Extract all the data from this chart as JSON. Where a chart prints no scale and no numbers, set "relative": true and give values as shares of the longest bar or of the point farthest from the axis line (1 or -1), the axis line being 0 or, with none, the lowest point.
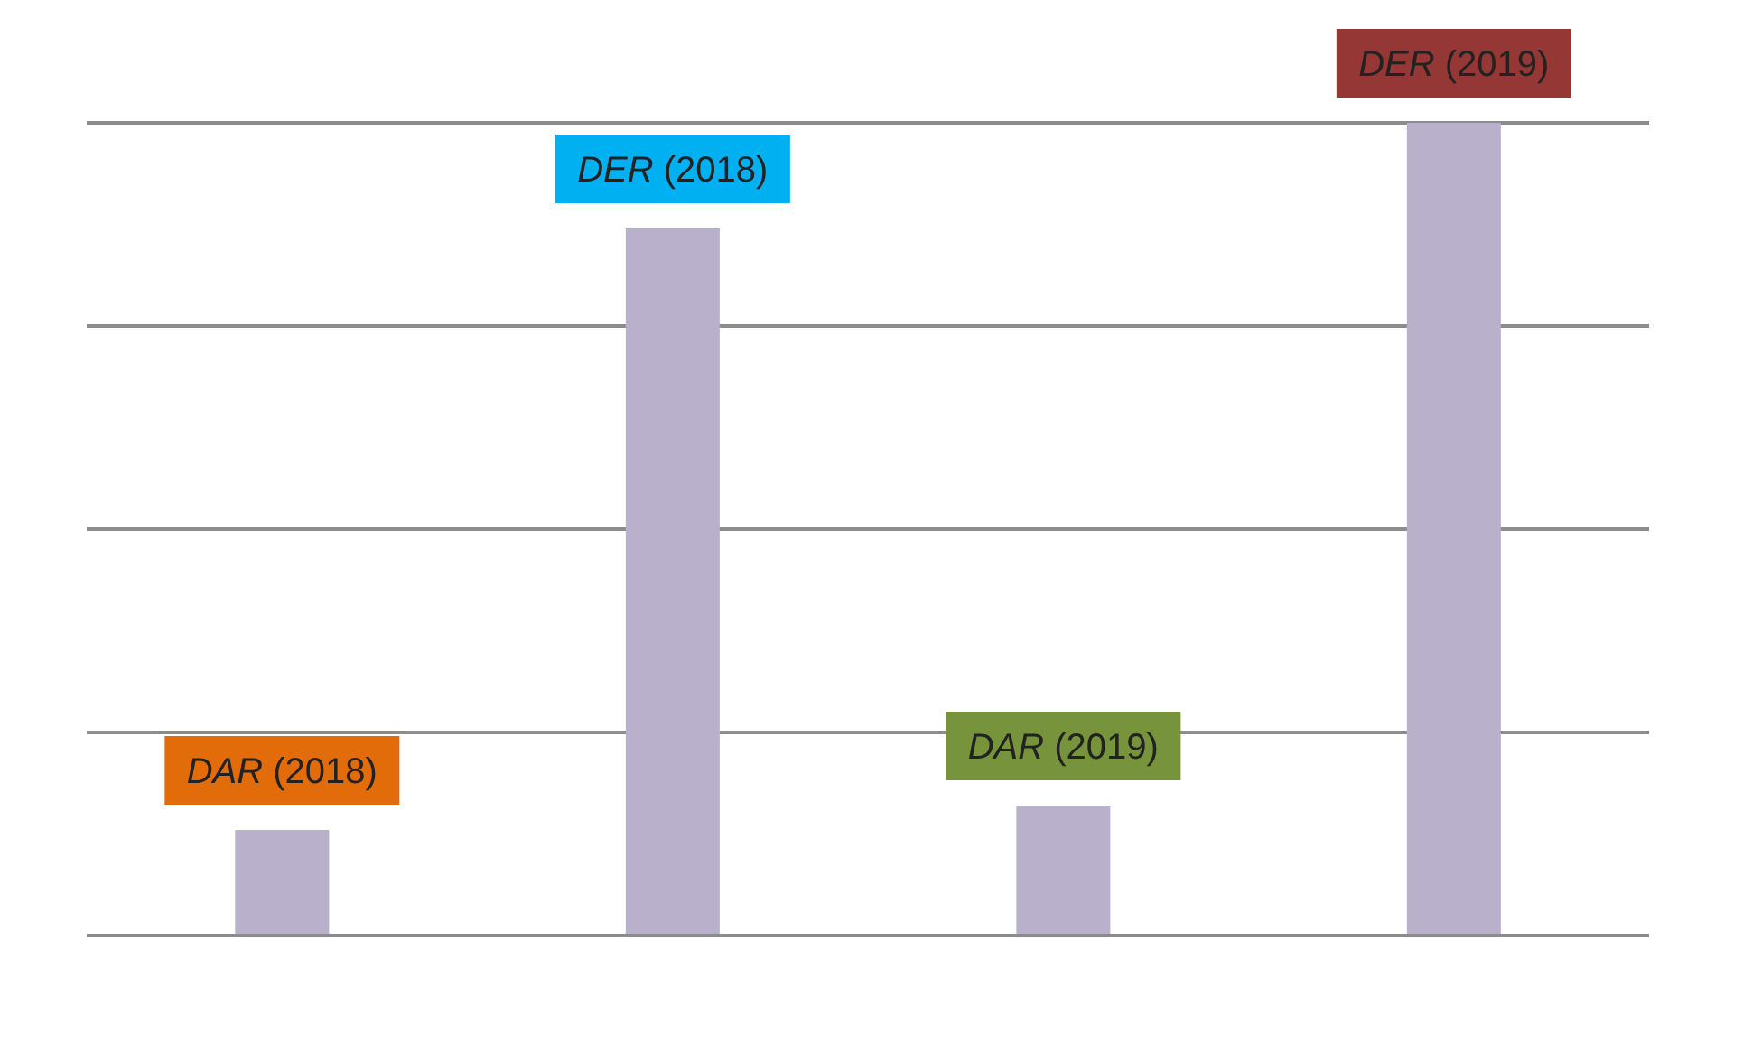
{
  "chart_data": {
    "type": "bar",
    "relative": true,
    "grid": "y",
    "categories": [
      null,
      null,
      null,
      null
    ],
    "series": [
      {
        "color": "#b9b0cb",
        "values": [
          0.13,
          0.87,
          0.16,
          1
        ]
      }
    ],
    "annotations": [
      "DAR (2018)",
      "DER (2018)",
      "DAR (2019)",
      "DER (2019)"
    ]
  }
}
